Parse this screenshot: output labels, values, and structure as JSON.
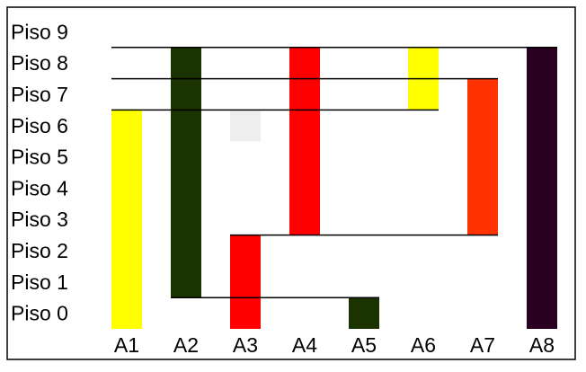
{
  "chart_data": {
    "type": "floor-span diagram",
    "floors": [
      "Piso 0",
      "Piso 1",
      "Piso 2",
      "Piso 3",
      "Piso 4",
      "Piso 5",
      "Piso 6",
      "Piso 7",
      "Piso 8",
      "Piso 9"
    ],
    "columns": [
      "A1",
      "A2",
      "A3",
      "A4",
      "A5",
      "A6",
      "A7",
      "A8"
    ],
    "bars": [
      {
        "column": "A1",
        "from_floor": 0,
        "to_floor": 6,
        "color": "#ffff00"
      },
      {
        "column": "A2",
        "from_floor": 1,
        "to_floor": 8,
        "color": "#1a3300"
      },
      {
        "column": "A3",
        "from_floor": 0,
        "to_floor": 2,
        "color": "#ff0000"
      },
      {
        "column": "A3",
        "from_floor": 6,
        "to_floor": 6,
        "color": "#eeeeee"
      },
      {
        "column": "A4",
        "from_floor": 3,
        "to_floor": 8,
        "color": "#ff0000"
      },
      {
        "column": "A5",
        "from_floor": 0,
        "to_floor": 0,
        "color": "#1a3300"
      },
      {
        "column": "A6",
        "from_floor": 7,
        "to_floor": 8,
        "color": "#ffff00"
      },
      {
        "column": "A7",
        "from_floor": 3,
        "to_floor": 7,
        "color": "#ff3300"
      },
      {
        "column": "A8",
        "from_floor": 0,
        "to_floor": 8,
        "color": "#2a0020"
      }
    ],
    "connectors": [
      {
        "level": 8,
        "from_column": "A1",
        "to_column": "A8"
      },
      {
        "level": 7,
        "from_column": "A1",
        "to_column": "A7"
      },
      {
        "level": 6,
        "from_column": "A1",
        "to_column": "A6"
      },
      {
        "level": 2,
        "from_column": "A3",
        "to_column": "A7"
      },
      {
        "level": 0,
        "from_column": "A2",
        "to_column": "A5"
      }
    ],
    "colors": {
      "frame": "#000000",
      "connector": "#000000",
      "background": "#ffffff"
    }
  }
}
